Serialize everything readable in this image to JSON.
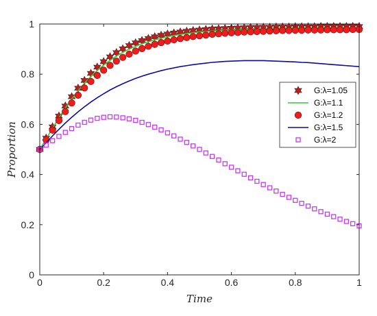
{
  "chart_data": {
    "type": "line",
    "xlabel": "Time",
    "ylabel": "Proportion",
    "xlim": [
      0,
      1
    ],
    "ylim": [
      0,
      1
    ],
    "xticks": [
      0,
      0.2,
      0.4,
      0.6,
      0.8,
      1
    ],
    "yticks": [
      0,
      0.2,
      0.4,
      0.6,
      0.8,
      1
    ],
    "xtick_labels": [
      "0",
      "0.2",
      "0.4",
      "0.6",
      "0.8",
      "1"
    ],
    "ytick_labels": [
      "0",
      "0.2",
      "0.4",
      "0.6",
      "0.8",
      "1"
    ],
    "grid": false,
    "legend_position": "right",
    "series": [
      {
        "name": "G:λ=1.05",
        "style": "marker",
        "marker": "hexagram",
        "color": "#b22222",
        "x": [
          0,
          0.02,
          0.04,
          0.06,
          0.08,
          0.1,
          0.12,
          0.14,
          0.16,
          0.18,
          0.2,
          0.22,
          0.24,
          0.26,
          0.28,
          0.3,
          0.32,
          0.34,
          0.36,
          0.38,
          0.4,
          0.42,
          0.44,
          0.46,
          0.48,
          0.5,
          0.52,
          0.54,
          0.56,
          0.58,
          0.6,
          0.62,
          0.64,
          0.66,
          0.68,
          0.7,
          0.72,
          0.74,
          0.76,
          0.78,
          0.8,
          0.82,
          0.84,
          0.86,
          0.88,
          0.9,
          0.92,
          0.94,
          0.96,
          0.98,
          1
        ],
        "y": [
          0.5,
          0.545,
          0.59,
          0.633,
          0.673,
          0.71,
          0.744,
          0.775,
          0.803,
          0.828,
          0.85,
          0.869,
          0.886,
          0.901,
          0.914,
          0.925,
          0.934,
          0.942,
          0.949,
          0.955,
          0.96,
          0.964,
          0.968,
          0.971,
          0.974,
          0.976,
          0.978,
          0.98,
          0.981,
          0.982,
          0.983,
          0.984,
          0.985,
          0.986,
          0.986,
          0.987,
          0.987,
          0.988,
          0.988,
          0.988,
          0.989,
          0.989,
          0.989,
          0.989,
          0.99,
          0.99,
          0.99,
          0.99,
          0.99,
          0.99,
          0.99
        ]
      },
      {
        "name": "G:λ=1.1",
        "style": "line",
        "color": "#33cc33",
        "x": [
          0,
          0.02,
          0.04,
          0.06,
          0.08,
          0.1,
          0.12,
          0.14,
          0.16,
          0.18,
          0.2,
          0.22,
          0.24,
          0.26,
          0.28,
          0.3,
          0.32,
          0.34,
          0.36,
          0.38,
          0.4,
          0.42,
          0.44,
          0.46,
          0.48,
          0.5,
          0.52,
          0.54,
          0.56,
          0.58,
          0.6,
          0.62,
          0.64,
          0.66,
          0.68,
          0.7,
          0.72,
          0.74,
          0.76,
          0.78,
          0.8,
          0.82,
          0.84,
          0.86,
          0.88,
          0.9,
          0.92,
          0.94,
          0.96,
          0.98,
          1
        ],
        "y": [
          0.5,
          0.542,
          0.585,
          0.626,
          0.665,
          0.701,
          0.734,
          0.764,
          0.791,
          0.815,
          0.836,
          0.855,
          0.872,
          0.887,
          0.9,
          0.911,
          0.921,
          0.929,
          0.937,
          0.943,
          0.949,
          0.954,
          0.958,
          0.962,
          0.965,
          0.968,
          0.97,
          0.972,
          0.974,
          0.976,
          0.977,
          0.978,
          0.979,
          0.98,
          0.981,
          0.982,
          0.982,
          0.983,
          0.983,
          0.984,
          0.984,
          0.984,
          0.985,
          0.985,
          0.985,
          0.985,
          0.986,
          0.986,
          0.986,
          0.986,
          0.986
        ]
      },
      {
        "name": "G:λ=1.2",
        "style": "marker",
        "marker": "circle",
        "color": "#ee1c1c",
        "x": [
          0,
          0.02,
          0.04,
          0.06,
          0.08,
          0.1,
          0.12,
          0.14,
          0.16,
          0.18,
          0.2,
          0.22,
          0.24,
          0.26,
          0.28,
          0.3,
          0.32,
          0.34,
          0.36,
          0.38,
          0.4,
          0.42,
          0.44,
          0.46,
          0.48,
          0.5,
          0.52,
          0.54,
          0.56,
          0.58,
          0.6,
          0.62,
          0.64,
          0.66,
          0.68,
          0.7,
          0.72,
          0.74,
          0.76,
          0.78,
          0.8,
          0.82,
          0.84,
          0.86,
          0.88,
          0.9,
          0.92,
          0.94,
          0.96,
          0.98,
          1
        ],
        "y": [
          0.5,
          0.538,
          0.577,
          0.615,
          0.651,
          0.685,
          0.716,
          0.745,
          0.771,
          0.795,
          0.816,
          0.835,
          0.852,
          0.867,
          0.88,
          0.892,
          0.902,
          0.911,
          0.919,
          0.926,
          0.932,
          0.937,
          0.942,
          0.946,
          0.95,
          0.953,
          0.956,
          0.959,
          0.961,
          0.963,
          0.965,
          0.966,
          0.968,
          0.969,
          0.97,
          0.971,
          0.972,
          0.973,
          0.974,
          0.974,
          0.975,
          0.975,
          0.976,
          0.976,
          0.976,
          0.977,
          0.977,
          0.977,
          0.977,
          0.978,
          0.978
        ]
      },
      {
        "name": "G:λ=1.5",
        "style": "line",
        "color": "#0a0aa8",
        "x": [
          0,
          0.02,
          0.04,
          0.06,
          0.08,
          0.1,
          0.12,
          0.14,
          0.16,
          0.18,
          0.2,
          0.22,
          0.24,
          0.26,
          0.28,
          0.3,
          0.32,
          0.34,
          0.36,
          0.38,
          0.4,
          0.42,
          0.44,
          0.46,
          0.48,
          0.5,
          0.52,
          0.54,
          0.56,
          0.58,
          0.6,
          0.62,
          0.64,
          0.66,
          0.68,
          0.7,
          0.72,
          0.74,
          0.76,
          0.78,
          0.8,
          0.82,
          0.84,
          0.86,
          0.88,
          0.9,
          0.92,
          0.94,
          0.96,
          0.98,
          1
        ],
        "y": [
          0.5,
          0.527,
          0.554,
          0.58,
          0.605,
          0.628,
          0.65,
          0.67,
          0.689,
          0.706,
          0.722,
          0.737,
          0.75,
          0.762,
          0.773,
          0.783,
          0.792,
          0.8,
          0.807,
          0.814,
          0.82,
          0.825,
          0.83,
          0.834,
          0.838,
          0.841,
          0.844,
          0.847,
          0.849,
          0.851,
          0.852,
          0.853,
          0.854,
          0.854,
          0.854,
          0.854,
          0.853,
          0.852,
          0.851,
          0.85,
          0.849,
          0.847,
          0.846,
          0.844,
          0.842,
          0.84,
          0.838,
          0.836,
          0.834,
          0.832,
          0.83
        ]
      },
      {
        "name": "G:λ=2",
        "style": "marker",
        "marker": "square",
        "color": "#cc33ff",
        "x": [
          0,
          0.02,
          0.04,
          0.06,
          0.08,
          0.1,
          0.12,
          0.14,
          0.16,
          0.18,
          0.2,
          0.22,
          0.24,
          0.26,
          0.28,
          0.3,
          0.32,
          0.34,
          0.36,
          0.38,
          0.4,
          0.42,
          0.44,
          0.46,
          0.48,
          0.5,
          0.52,
          0.54,
          0.56,
          0.58,
          0.6,
          0.62,
          0.64,
          0.66,
          0.68,
          0.7,
          0.72,
          0.74,
          0.76,
          0.78,
          0.8,
          0.82,
          0.84,
          0.86,
          0.88,
          0.9,
          0.92,
          0.94,
          0.96,
          0.98,
          1
        ],
        "y": [
          0.5,
          0.517,
          0.535,
          0.552,
          0.568,
          0.583,
          0.597,
          0.608,
          0.617,
          0.624,
          0.628,
          0.63,
          0.629,
          0.626,
          0.622,
          0.616,
          0.608,
          0.599,
          0.589,
          0.578,
          0.566,
          0.554,
          0.541,
          0.528,
          0.514,
          0.5,
          0.486,
          0.472,
          0.458,
          0.443,
          0.429,
          0.415,
          0.401,
          0.387,
          0.373,
          0.36,
          0.347,
          0.334,
          0.321,
          0.309,
          0.297,
          0.285,
          0.274,
          0.263,
          0.252,
          0.242,
          0.232,
          0.222,
          0.213,
          0.204,
          0.195
        ]
      }
    ]
  }
}
